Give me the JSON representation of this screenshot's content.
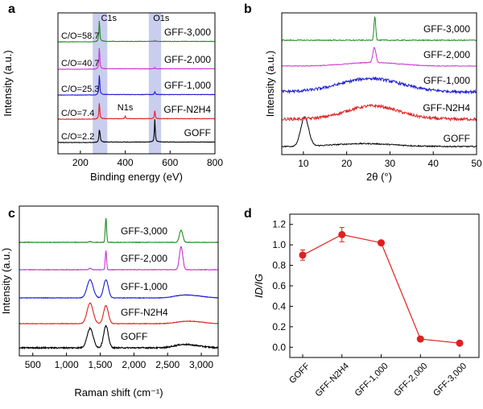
{
  "chart_data": [
    {
      "panel": "a",
      "type": "line",
      "xlabel": "Binding energy (eV)",
      "ylabel": "Intensity (a.u.)",
      "xlim": [
        100,
        800
      ],
      "xticks": [
        200,
        400,
        600,
        800
      ],
      "highlight_bands": [
        [
          255,
          320
        ],
        [
          505,
          560
        ]
      ],
      "peak_labels": [
        {
          "text": "C1s",
          "x": 284
        },
        {
          "text": "O1s",
          "x": 532
        },
        {
          "text": "N1s",
          "x": 400
        }
      ],
      "series": [
        {
          "name": "GOFF",
          "ratio": "C/O=2.2",
          "color": "#000000",
          "peaks": [
            {
              "x": 284.6,
              "h": 0.55
            },
            {
              "x": 288,
              "h": 0.2
            },
            {
              "x": 532,
              "h": 1.0
            }
          ]
        },
        {
          "name": "GFF-N2H4",
          "ratio": "C/O=7.4",
          "color": "#e02020",
          "peaks": [
            {
              "x": 284.6,
              "h": 0.75
            },
            {
              "x": 400,
              "h": 0.12
            },
            {
              "x": 532,
              "h": 0.35
            }
          ]
        },
        {
          "name": "GFF-1,000",
          "ratio": "C/O=25.3",
          "color": "#1a1ad6",
          "peaks": [
            {
              "x": 284.6,
              "h": 0.95
            },
            {
              "x": 532,
              "h": 0.12
            }
          ]
        },
        {
          "name": "GFF-2,000",
          "ratio": "C/O=40.7",
          "color": "#cc33cc",
          "peaks": [
            {
              "x": 284.6,
              "h": 1.0
            },
            {
              "x": 532,
              "h": 0.06
            }
          ]
        },
        {
          "name": "GFF-3,000",
          "ratio": "C/O=58.7",
          "color": "#228b22",
          "peaks": [
            {
              "x": 284.6,
              "h": 1.0
            },
            {
              "x": 532,
              "h": 0.04
            }
          ]
        }
      ]
    },
    {
      "panel": "b",
      "type": "line",
      "xlabel": "2θ (°)",
      "ylabel": "Intensity (a.u.)",
      "xlim": [
        5,
        50
      ],
      "xticks": [
        10,
        20,
        30,
        40,
        50
      ],
      "series": [
        {
          "name": "GOFF",
          "color": "#000000",
          "sharp": [
            {
              "x": 10.3,
              "h": 1.0,
              "w": 0.9
            }
          ],
          "hump": [
            {
              "x": 24,
              "h": 0.1,
              "w": 7
            }
          ]
        },
        {
          "name": "GFF-N2H4",
          "color": "#e02020",
          "hump": [
            {
              "x": 26,
              "h": 0.55,
              "w": 6
            }
          ]
        },
        {
          "name": "GFF-1,000",
          "color": "#1a1ad6",
          "hump": [
            {
              "x": 25.5,
              "h": 0.55,
              "w": 7
            }
          ]
        },
        {
          "name": "GFF-2,000",
          "color": "#cc33cc",
          "sharp": [
            {
              "x": 26.4,
              "h": 0.85,
              "w": 0.35
            }
          ],
          "hump": [
            {
              "x": 26,
              "h": 0.2,
              "w": 6
            }
          ]
        },
        {
          "name": "GFF-3,000",
          "color": "#228b22",
          "sharp": [
            {
              "x": 26.5,
              "h": 1.0,
              "w": 0.2
            }
          ]
        }
      ]
    },
    {
      "panel": "c",
      "type": "line",
      "xlabel": "Raman shift (cm⁻¹)",
      "ylabel": "Intensity (a.u.)",
      "xlim": [
        300,
        3250
      ],
      "xticks": [
        500,
        1000,
        1500,
        2000,
        2500,
        3000
      ],
      "xtick_labels": [
        "500",
        "1,000",
        "1,500",
        "2,000",
        "2,500",
        "3,000"
      ],
      "series": [
        {
          "name": "GOFF",
          "color": "#000000",
          "D": 0.8,
          "G": 0.9,
          "twoD": 0.1
        },
        {
          "name": "GFF-N2H4",
          "color": "#e02020",
          "D": 0.85,
          "G": 0.75,
          "twoD": 0.05
        },
        {
          "name": "GFF-1,000",
          "color": "#1a1ad6",
          "D": 0.75,
          "G": 0.75,
          "twoD": 0.08
        },
        {
          "name": "GFF-2,000",
          "color": "#cc33cc",
          "D": 0.06,
          "G": 0.8,
          "twoD": 0.95
        },
        {
          "name": "GFF-3,000",
          "color": "#228b22",
          "D": 0.03,
          "G": 1.0,
          "twoD": 0.5
        }
      ]
    },
    {
      "panel": "d",
      "type": "line",
      "ylabel": "ID/IG",
      "ylim": [
        -0.1,
        1.3
      ],
      "yticks": [
        0.0,
        0.2,
        0.4,
        0.6,
        0.8,
        1.0,
        1.2
      ],
      "ytick_labels": [
        "0.0",
        "0.2",
        "0.4",
        "0.6",
        "0.8",
        "1.0",
        "1.2"
      ],
      "categories": [
        "GOFF",
        "GFF-N2H4",
        "GFF-1,000",
        "GFF-2,000",
        "GFF-3,000"
      ],
      "values": [
        0.9,
        1.1,
        1.02,
        0.08,
        0.04
      ],
      "errors": [
        0.05,
        0.07,
        0.0,
        0.0,
        0.0
      ],
      "color": "#e02020"
    }
  ]
}
